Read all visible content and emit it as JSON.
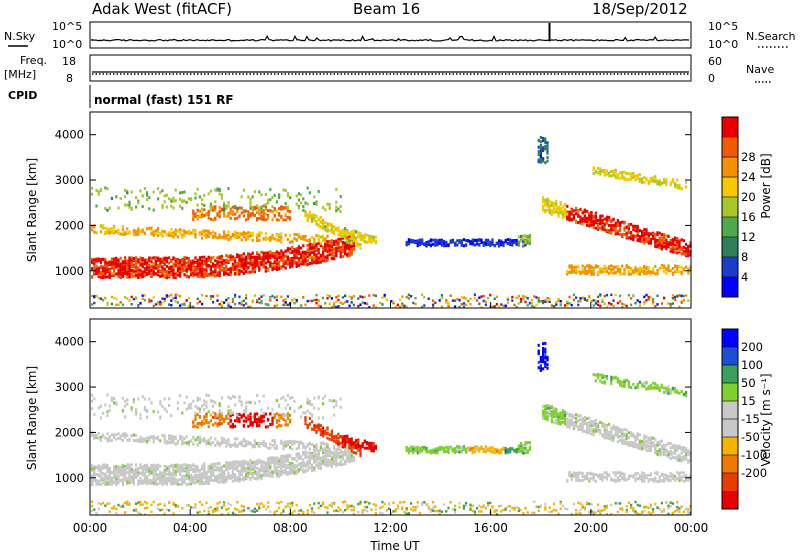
{
  "header": {
    "station": "Adak West (fitACF)",
    "beam": "Beam 16",
    "date": "18/Sep/2012"
  },
  "left_labels": {
    "nsky": "N.Sky",
    "freq": "Freq.",
    "freq_unit": "[MHz]",
    "cpid": "CPID"
  },
  "right_labels": {
    "nsearch": "N.Search",
    "nave": "Nave"
  },
  "noise_axis": {
    "left_top": "10^5",
    "left_bottom": "10^0",
    "right_top": "10^5",
    "right_bottom": "10^0"
  },
  "freq_axis": {
    "left_top": "18",
    "left_bottom": "8",
    "right_top": "60",
    "right_bottom": "0"
  },
  "cpid_text": "normal (fast) 151 RF",
  "chart_data": [
    {
      "type": "heatmap",
      "name": "power",
      "ylabel": "Slant Range [km]",
      "yticks": [
        "1000",
        "2000",
        "3000",
        "4000"
      ],
      "colorbar_label": "Power [dB]",
      "colorbar_ticks": [
        "4",
        "8",
        "12",
        "16",
        "20",
        "24",
        "28"
      ],
      "colors": [
        "#0000ff",
        "#1a3cc8",
        "#2e7e5c",
        "#50a850",
        "#a8c82a",
        "#f5c800",
        "#f59000",
        "#f05a00",
        "#e80000"
      ],
      "ylim": [
        180,
        4500
      ],
      "xlim": [
        0,
        24
      ]
    },
    {
      "type": "heatmap",
      "name": "velocity",
      "ylabel": "Slant Range [km]",
      "yticks": [
        "1000",
        "2000",
        "3000",
        "4000"
      ],
      "colorbar_label": "Velocity [m s⁻¹]",
      "colorbar_ticks": [
        "200",
        "100",
        "50",
        "15",
        "-15",
        "-50",
        "-100",
        "-200"
      ],
      "colors": [
        "#0000ff",
        "#1c50d4",
        "#3aa05a",
        "#7fd030",
        "#c8c8c8",
        "#c8c8c8",
        "#f5b400",
        "#f07800",
        "#e83c00",
        "#e80000"
      ],
      "ylim": [
        180,
        4500
      ],
      "xlim": [
        0,
        24
      ]
    }
  ],
  "time_axis": {
    "ticks": [
      "00:00",
      "04:00",
      "08:00",
      "12:00",
      "16:00",
      "20:00",
      "00:00"
    ],
    "label": "Time UT"
  }
}
